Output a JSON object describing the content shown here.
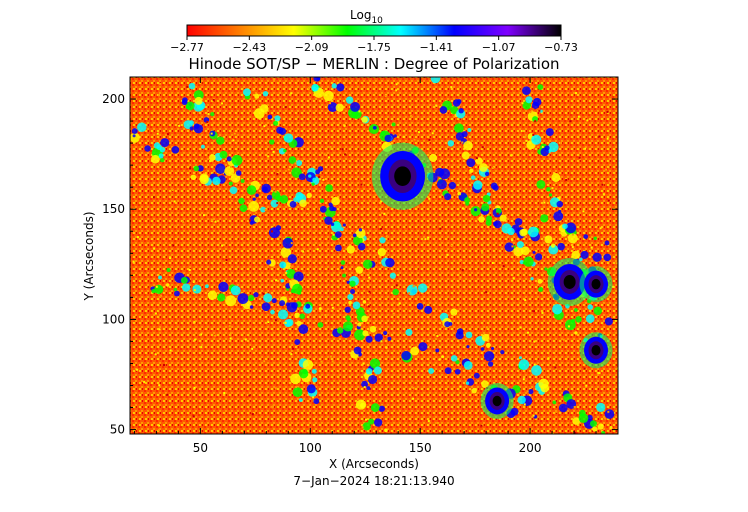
{
  "chart_data": {
    "type": "heatmap",
    "title": "Hinode SOT/SP − MERLIN : Degree of Polarization",
    "xlabel": "X (Arcseconds)",
    "ylabel": "Y (Arcseconds)",
    "timestamp": "7−Jan−2024  18:21:13.940",
    "colorbar": {
      "label_base": "Log",
      "label_sub": "10",
      "ticks": [
        "−2.77",
        "−2.43",
        "−2.09",
        "−1.75",
        "−1.41",
        "−1.07",
        "−0.73"
      ],
      "range": [
        -2.77,
        -0.73
      ],
      "colors": [
        "#ff0000",
        "#ff8000",
        "#ffff00",
        "#00ff00",
        "#00ffff",
        "#0000ff",
        "#7f00ff",
        "#000000"
      ]
    },
    "xlim": [
      18,
      240
    ],
    "ylim": [
      48,
      210
    ],
    "xticks": [
      50,
      100,
      150,
      200
    ],
    "yticks": [
      50,
      100,
      150,
      200
    ],
    "features": [
      {
        "type": "spot",
        "x": 142,
        "y": 165,
        "value": -0.9
      },
      {
        "type": "spot",
        "x": 218,
        "y": 117,
        "value": -0.95
      },
      {
        "type": "spot",
        "x": 230,
        "y": 116,
        "value": -1.0
      },
      {
        "type": "spot",
        "x": 230,
        "y": 86,
        "value": -1.0
      },
      {
        "type": "spot",
        "x": 185,
        "y": 63,
        "value": -1.1
      }
    ]
  },
  "colors": {
    "background": "#ffffff",
    "text": "#000000"
  }
}
